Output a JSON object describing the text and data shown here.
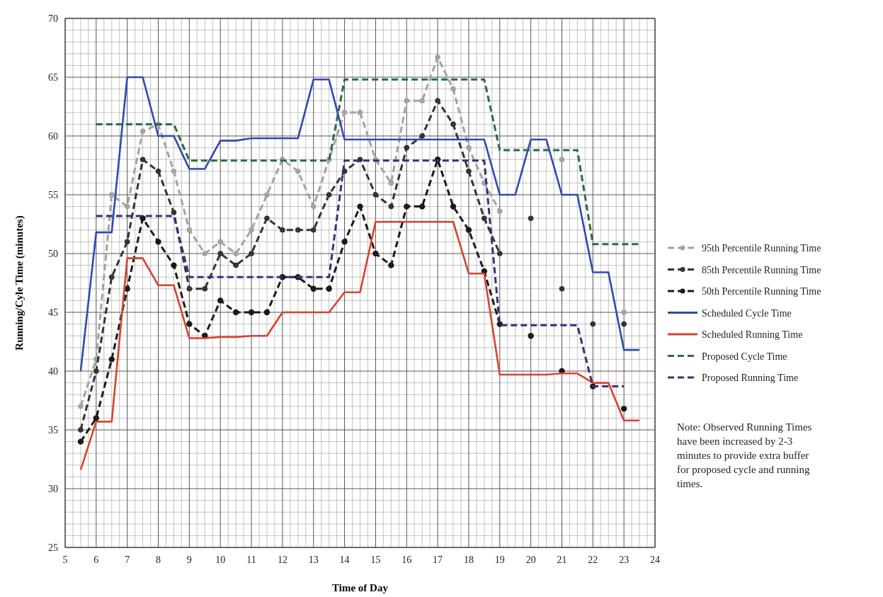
{
  "chart_data": {
    "type": "line",
    "xlabel": "Time of Day",
    "ylabel": "Running/Cyle Time (minutes)",
    "x": [
      5.5,
      6,
      6.5,
      7,
      7.5,
      8,
      8.5,
      9,
      9.5,
      10,
      10.5,
      11,
      11.5,
      12,
      12.5,
      13,
      13.5,
      14,
      14.5,
      15,
      15.5,
      16,
      16.5,
      17,
      17.5,
      18,
      18.5,
      19,
      19.5,
      20,
      20.5,
      21,
      21.5,
      22,
      22.5,
      23,
      23.5
    ],
    "series": [
      {
        "name": "95th Percentile Running Time",
        "color": "#a3a3a3",
        "line_style": "dashed",
        "marker": "circle",
        "values": [
          37,
          41,
          55,
          54,
          60.4,
          61,
          57,
          52,
          50,
          51,
          50,
          52,
          55,
          58,
          57,
          54,
          58,
          62,
          62,
          58,
          56,
          63,
          63,
          66.7,
          64,
          59,
          56,
          53.6,
          null,
          null,
          null,
          58,
          null,
          null,
          null,
          45,
          null
        ]
      },
      {
        "name": "85th Percentile Running Time",
        "color": "#333333",
        "line_style": "dashed",
        "marker": "circle",
        "values": [
          35,
          40,
          48,
          51,
          58,
          57,
          53.5,
          47,
          47,
          50,
          49,
          50,
          53,
          52,
          52,
          52,
          55,
          57,
          58,
          55,
          54,
          59,
          60,
          63,
          61,
          57,
          53,
          50,
          null,
          53,
          null,
          47,
          null,
          44,
          null,
          44,
          null
        ]
      },
      {
        "name": "50th Percentile Running Time",
        "color": "#1a1a1a",
        "line_style": "dashed",
        "marker": "circle",
        "values": [
          34,
          36,
          41,
          47,
          53,
          51,
          49,
          44,
          43,
          46,
          45,
          45,
          45,
          48,
          48,
          47,
          47,
          51,
          54,
          50,
          49,
          54,
          54,
          58,
          54,
          52,
          48.5,
          44,
          null,
          43,
          null,
          40,
          null,
          38.7,
          null,
          36.8,
          null
        ]
      },
      {
        "name": "Scheduled Cycle Time",
        "color": "#2f49b3",
        "line_style": "solid",
        "marker": "none",
        "values": [
          40,
          51.8,
          51.8,
          65,
          65,
          60,
          60,
          57.2,
          57.2,
          59.6,
          59.6,
          59.8,
          59.8,
          59.8,
          59.8,
          64.8,
          64.8,
          59.7,
          59.7,
          59.7,
          59.7,
          59.7,
          59.7,
          59.7,
          59.7,
          59.7,
          59.7,
          55,
          55,
          59.7,
          59.7,
          55,
          55,
          48.4,
          48.4,
          41.8,
          41.8
        ]
      },
      {
        "name": "Scheduled Running Time",
        "color": "#d9412e",
        "line_style": "solid",
        "marker": "none",
        "values": [
          31.6,
          35.7,
          35.7,
          49.6,
          49.6,
          47.3,
          47.3,
          42.8,
          42.8,
          42.9,
          42.9,
          43,
          43,
          45,
          45,
          45,
          45,
          46.7,
          46.7,
          52.7,
          52.7,
          52.7,
          52.7,
          52.7,
          52.7,
          48.3,
          48.3,
          39.7,
          39.7,
          39.7,
          39.7,
          39.8,
          39.8,
          39,
          39,
          35.8,
          35.8
        ]
      },
      {
        "name": "Proposed Cycle Time",
        "color": "#2e6b3f",
        "line_style": "dashed",
        "marker": "none",
        "values": [
          null,
          61,
          61,
          61,
          61,
          61,
          61,
          57.9,
          57.9,
          57.9,
          57.9,
          57.9,
          57.9,
          57.9,
          57.9,
          57.9,
          57.9,
          64.8,
          64.8,
          64.8,
          64.8,
          64.8,
          64.8,
          64.8,
          64.8,
          64.8,
          64.8,
          58.8,
          58.8,
          58.8,
          58.8,
          58.8,
          58.8,
          50.8,
          50.8,
          50.8,
          50.8
        ]
      },
      {
        "name": "Proposed Running Time",
        "color": "#3a2f7a",
        "line_style": "dashed",
        "marker": "none",
        "values": [
          null,
          53.2,
          53.2,
          53.2,
          53.2,
          53.2,
          53.2,
          48,
          48,
          48,
          48,
          48,
          48,
          48,
          48,
          48,
          48,
          57.9,
          57.9,
          57.9,
          57.9,
          57.9,
          57.9,
          57.9,
          57.9,
          57.9,
          57.9,
          43.9,
          43.9,
          43.9,
          43.9,
          43.9,
          43.9,
          38.7,
          38.7,
          38.7,
          null
        ]
      }
    ],
    "xlim": [
      5,
      24
    ],
    "xticks": [
      5,
      6,
      7,
      8,
      9,
      10,
      11,
      12,
      13,
      14,
      15,
      16,
      17,
      18,
      19,
      20,
      21,
      22,
      23,
      24
    ],
    "ylim": [
      25,
      70
    ],
    "yticks": [
      25,
      30,
      35,
      40,
      45,
      50,
      55,
      60,
      65,
      70
    ],
    "grid": true,
    "legend": "right",
    "annotations": [
      "Note:  Observed Running Times have been increased by 2-3 minutes to provide extra buffer for proposed cycle and running times."
    ]
  }
}
